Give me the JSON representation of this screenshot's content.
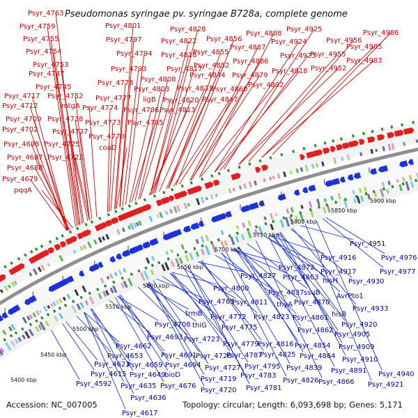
{
  "title": "Pseudomonas syringae pv. syringae B728a, complete genome",
  "accession": "Accession: NC_007005",
  "summary": "Topology: circular; Length: 6,093,698 bp; Genes: 5,171",
  "colors": {
    "forward_cds": "#e02020",
    "reverse_cds": "#1a33dd",
    "forward_label": "#cc0000",
    "reverse_label": "#0000aa",
    "backbone": "#8f8f8f",
    "rna_marks": "#2a8a2a"
  },
  "ticks": [
    "5400 kbp",
    "5450 kbp",
    "5500 kbp",
    "5550 kbp",
    "5600 kbp",
    "5650 kbp",
    "5700 kbp",
    "5750 kbp",
    "5800 kbp",
    "5850 kbp",
    "5900 kbp"
  ],
  "forward_labels": [
    "Psyr_4763",
    "Psyr_4759",
    "Psyr_4755",
    "Psyr_4754",
    "Psyr_4753",
    "Psyr_4747",
    "Psyr_4745",
    "Psyr_4752",
    "Psyr_4717",
    "mtgA",
    "Psyr_4712",
    "Psyr_4738",
    "Psyr_4709",
    "Psyr_4737",
    "Psyr_4702",
    "Psyr_4725",
    "Psyr_4698",
    "Psyr_4722",
    "Psyr_4697",
    "Psyr_4688",
    "Psyr_4679",
    "pqqA",
    "Psyr_4801",
    "Psyr_4797",
    "Psyr_4794",
    "Psyr_4793",
    "Psyr_4778",
    "Psyr_4777",
    "Psyr_4774",
    "Psyr_4773",
    "Psyr_4770",
    "coaD",
    "Psyr_4828",
    "Psyr_4822",
    "Psyr_4818",
    "Psyr_4817",
    "Psyr_4808",
    "Psyr_4803",
    "ligB",
    "Psyr_4786",
    "Psyr_4785",
    "Psyr_4820",
    "Psyr_4813",
    "Psyr_4831",
    "Psyr_4856",
    "Psyr_4855",
    "Psyr_4852",
    "Psyr_4844",
    "Psyr_4847",
    "Psyr_4860",
    "Psyr_4888",
    "Psyr_4887",
    "Psyr_4886",
    "Psyr_4879",
    "Psyr_4892",
    "Psyr_4925",
    "Psyr_4924",
    "Psyr_4923",
    "Psyr_4918",
    "Psyr_4956",
    "Psyr_4955",
    "Psyr_4952",
    "Psyr_4986",
    "Psyr_4985",
    "Psyr_4983"
  ],
  "reverse_labels": [
    "Psyr_4951",
    "Psyr_4976",
    "Psyr_4977",
    "Psyr_4916",
    "Psyr_4872",
    "Psyr_4917",
    "Psyr_4863",
    "hisH",
    "Psyr_4930",
    "ssuB",
    "AvrPto1",
    "Psyr_4827",
    "Psyr_4837",
    "Psyr_4870",
    "Psyr_4933",
    "hisB",
    "Psyr_4800",
    "Psyr_4811",
    "thyA",
    "Psyr_4920",
    "Psyr_4861",
    "trmB",
    "Psyr_4765",
    "Psyr_4772",
    "Psyr_4823",
    "Psyr_4862",
    "Psyr_4905",
    "thiG",
    "Psyr_4708",
    "Psyr_4775",
    "Psyr_4909",
    "Psyr_4693",
    "Psyr_4723",
    "Psyr_4779",
    "Psyr_4816",
    "Psyr_4854",
    "Psyr_4662",
    "Psyr_4691",
    "Psyr_4726",
    "Psyr_4787",
    "Psyr_4825",
    "Psyr_4864",
    "Psyr_4910",
    "Psyr_4653",
    "Psyr_4694",
    "Psyr_4727",
    "Psyr_4795",
    "Psyr_4839",
    "Psyr_4891",
    "Psyr_4940",
    "Psyr_4623",
    "Psyr_4659",
    "Psyr_4719",
    "Psyr_4783",
    "Psyr_4615",
    "Psyr_4649",
    "bioD",
    "Psyr_4826",
    "Psyr_4866",
    "Psyr_4921",
    "Psyr_4592",
    "Psyr_4635",
    "Psyr_4676",
    "Psyr_4720",
    "Psyr_4781",
    "Psyr_4636",
    "Psyr_4617"
  ]
}
